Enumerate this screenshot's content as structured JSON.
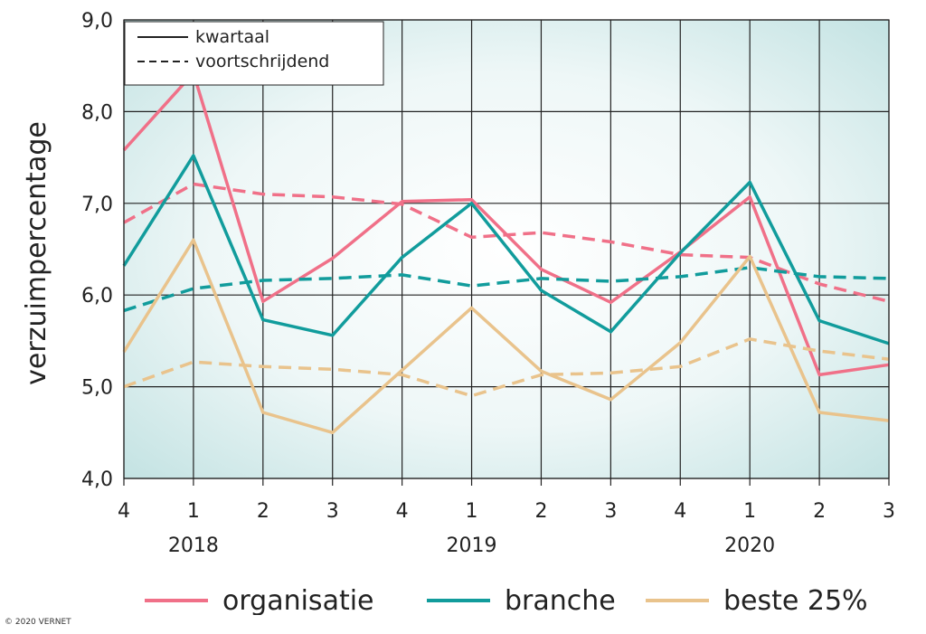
{
  "chart_data": {
    "type": "line",
    "title": "",
    "ylabel": "verzuimpercentage",
    "xlabel": "",
    "ylim": [
      4.0,
      9.0
    ],
    "yticks": [
      "4,0",
      "5,0",
      "6,0",
      "7,0",
      "8,0",
      "9,0"
    ],
    "ytick_values": [
      4,
      5,
      6,
      7,
      8,
      9
    ],
    "x": [
      "4",
      "1",
      "2",
      "3",
      "4",
      "1",
      "2",
      "3",
      "4",
      "1",
      "2",
      "3"
    ],
    "years": [
      {
        "label": "2018",
        "at_index": 1
      },
      {
        "label": "2019",
        "at_index": 5
      },
      {
        "label": "2020",
        "at_index": 9
      }
    ],
    "grid": true,
    "style_legend": [
      {
        "label": "kwartaal",
        "dash": "solid"
      },
      {
        "label": "voortschrijdend",
        "dash": "dashed"
      }
    ],
    "series": [
      {
        "name": "organisatie",
        "color": "#f07088",
        "dash": "solid",
        "values": [
          7.58,
          8.42,
          5.93,
          6.4,
          7.02,
          7.04,
          6.28,
          5.92,
          6.47,
          7.07,
          5.13,
          5.24
        ]
      },
      {
        "name": "organisatie",
        "color": "#f07088",
        "dash": "dashed",
        "in_legend": false,
        "values": [
          6.79,
          7.21,
          7.1,
          7.07,
          6.99,
          6.63,
          6.68,
          6.58,
          6.44,
          6.41,
          6.12,
          5.93
        ]
      },
      {
        "name": "branche",
        "color": "#119c9c",
        "dash": "solid",
        "values": [
          6.32,
          7.52,
          5.73,
          5.56,
          6.41,
          7.0,
          6.05,
          5.6,
          6.46,
          7.23,
          5.72,
          5.47
        ]
      },
      {
        "name": "branche",
        "color": "#119c9c",
        "dash": "dashed",
        "in_legend": false,
        "values": [
          5.83,
          6.07,
          6.16,
          6.18,
          6.22,
          6.1,
          6.18,
          6.15,
          6.2,
          6.3,
          6.2,
          6.18
        ]
      },
      {
        "name": "beste 25%",
        "color": "#e9c38c",
        "dash": "solid",
        "values": [
          5.38,
          6.6,
          4.72,
          4.5,
          5.18,
          5.86,
          5.17,
          4.86,
          5.48,
          6.42,
          4.72,
          4.63
        ]
      },
      {
        "name": "beste 25%",
        "color": "#e9c38c",
        "dash": "dashed",
        "in_legend": false,
        "values": [
          5.0,
          5.27,
          5.22,
          5.19,
          5.13,
          4.9,
          5.13,
          5.15,
          5.22,
          5.52,
          5.39,
          5.3
        ]
      }
    ],
    "colors": {
      "plot_bg_edge": "#cde8e8",
      "plot_bg_center": "#ffffff",
      "grid": "#222222"
    }
  },
  "footer": {
    "copyright": "© 2020 VERNET"
  }
}
